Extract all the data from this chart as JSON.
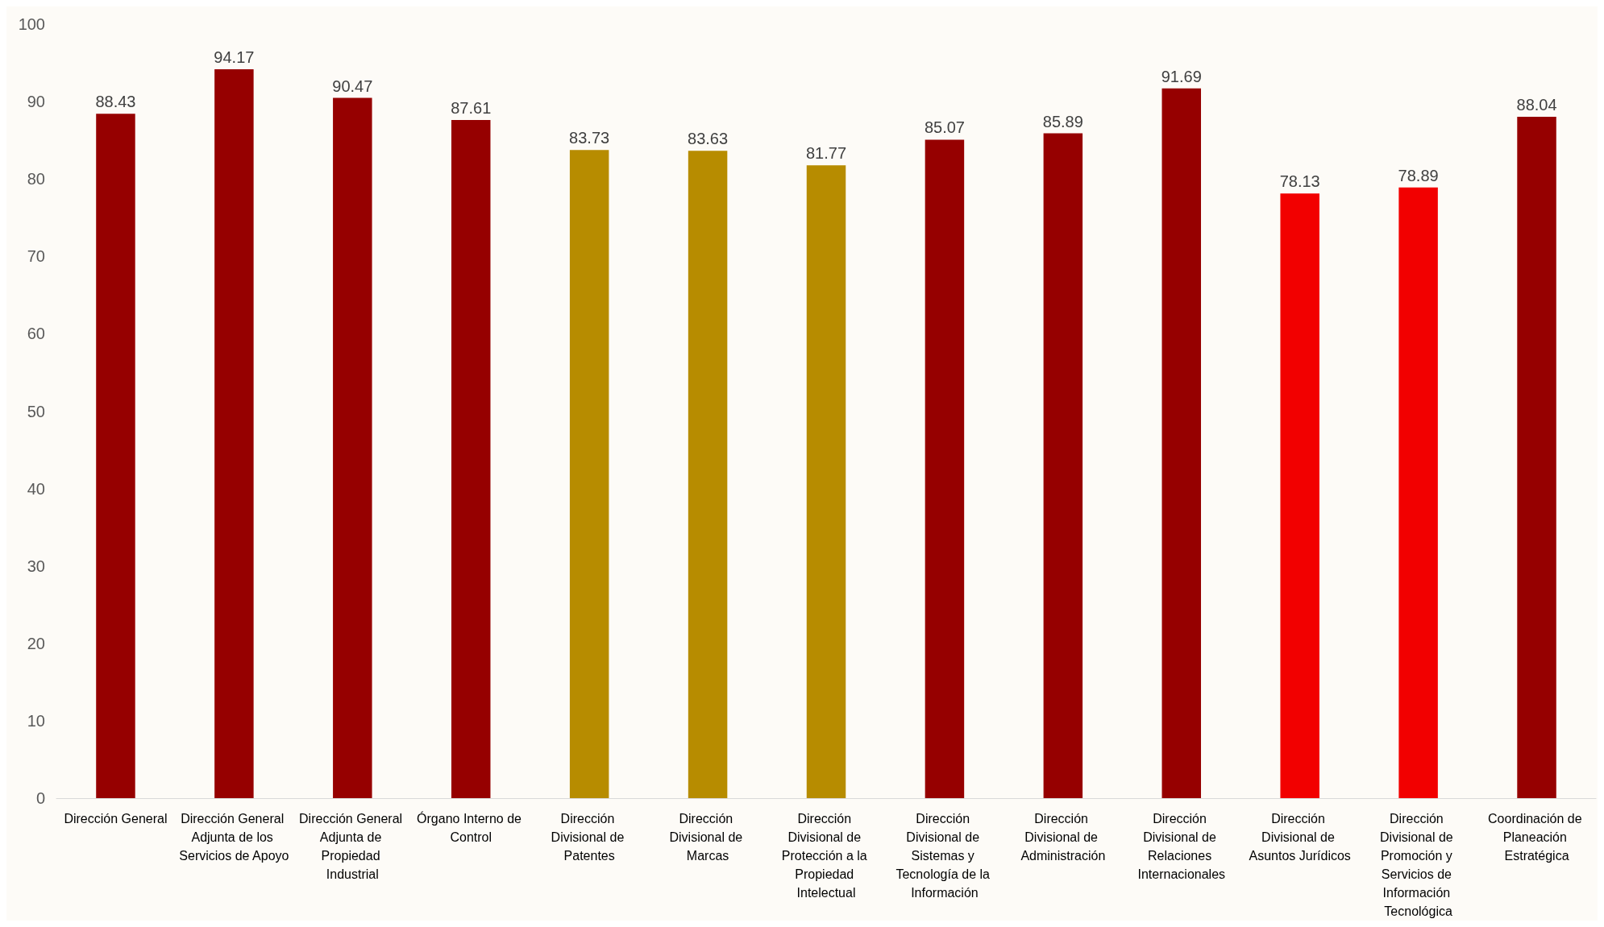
{
  "chart_data": {
    "type": "bar",
    "categories": [
      "Dirección General",
      "Dirección General Adjunta de los Servicios de Apoyo",
      "Dirección General Adjunta de Propiedad Industrial",
      "Órgano Interno de Control",
      "Dirección Divisional de Patentes",
      "Dirección Divisional de Marcas",
      "Dirección Divisional de Protección a la Propiedad Intelectual",
      "Dirección Divisional de Sistemas y Tecnología de la Información",
      "Dirección Divisional de Administración",
      "Dirección Divisional de Relaciones Internacionales",
      "Dirección Divisional de Asuntos Jurídicos",
      "Dirección Divisional de Promoción y Servicios de Información Tecnológica",
      "Coordinación de Planeación Estratégica"
    ],
    "values": [
      88.43,
      94.17,
      90.47,
      87.61,
      83.73,
      83.63,
      81.77,
      85.07,
      85.89,
      91.69,
      78.13,
      78.89,
      88.04
    ],
    "colors": [
      "#960000",
      "#960000",
      "#960000",
      "#960000",
      "#b78c00",
      "#b78c00",
      "#b78c00",
      "#960000",
      "#960000",
      "#960000",
      "#f20000",
      "#f20000",
      "#960000"
    ],
    "ylim": [
      0,
      100
    ],
    "yticks": [
      0,
      10,
      20,
      30,
      40,
      50,
      60,
      70,
      80,
      90,
      100
    ],
    "data_labels": true,
    "grid": false
  }
}
